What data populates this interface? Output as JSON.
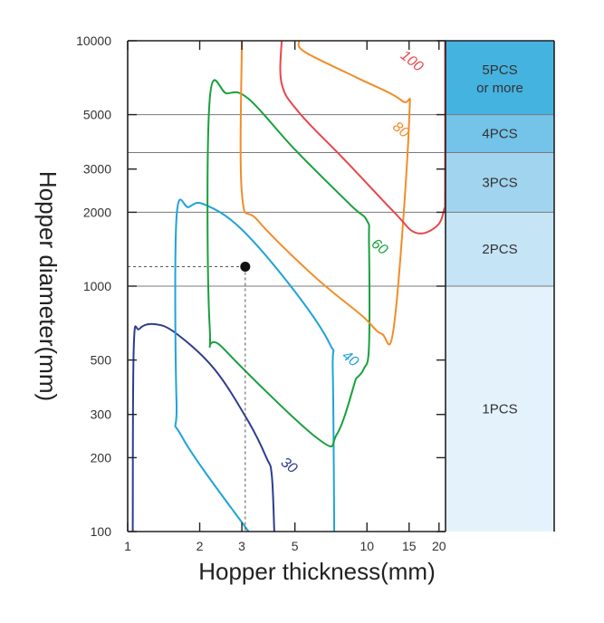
{
  "chart_data": {
    "type": "line",
    "xlabel": "Hopper thickness(mm)",
    "ylabel": "Hopper diameter(mm)",
    "x_scale": "log",
    "y_scale": "log",
    "xlim": [
      1,
      25
    ],
    "ylim": [
      100,
      10000
    ],
    "x_ticks": [
      "1",
      "2",
      "3",
      "5",
      "10",
      "15",
      "20"
    ],
    "y_ticks": [
      "100",
      "200",
      "300",
      "500",
      "1000",
      "2000",
      "3000",
      "5000",
      "10000"
    ],
    "bands": [
      {
        "label": "5PCS",
        "label2": "or more",
        "from": 5000,
        "to": 10000,
        "color": "#45b3e0"
      },
      {
        "label": "4PCS",
        "from": 3500,
        "to": 5000,
        "color": "#74c3e8"
      },
      {
        "label": "3PCS",
        "from": 2000,
        "to": 3500,
        "color": "#a1d4ee"
      },
      {
        "label": "2PCS",
        "from": 1000,
        "to": 2000,
        "color": "#c5e4f5"
      },
      {
        "label": "1PCS",
        "from": 100,
        "to": 1000,
        "color": "#e4f2fb"
      }
    ],
    "series": [
      {
        "name": "30",
        "color": "#2e3c8f",
        "points": [
          [
            1.05,
            100
          ],
          [
            1.06,
            560
          ],
          [
            1.12,
            670
          ],
          [
            1.3,
            700
          ],
          [
            1.6,
            640
          ],
          [
            2.3,
            460
          ],
          [
            3.2,
            280
          ],
          [
            3.8,
            200
          ],
          [
            4.0,
            170
          ],
          [
            4.1,
            100
          ]
        ],
        "label_at": [
          4.6,
          180
        ]
      },
      {
        "name": "40",
        "color": "#1fa3d9",
        "points": [
          [
            3.2,
            100
          ],
          [
            1.7,
            240
          ],
          [
            1.6,
            340
          ],
          [
            1.6,
            1900
          ],
          [
            1.8,
            2100
          ],
          [
            2.1,
            2150
          ],
          [
            3.0,
            1700
          ],
          [
            5.0,
            950
          ],
          [
            7.0,
            580
          ],
          [
            7.2,
            450
          ],
          [
            7.3,
            100
          ]
        ],
        "label_at": [
          8.3,
          490
        ]
      },
      {
        "name": "60",
        "color": "#18a03c",
        "points": [
          [
            9.0,
            420
          ],
          [
            7.5,
            250
          ],
          [
            6.2,
            240
          ],
          [
            2.5,
            560
          ],
          [
            2.2,
            690
          ],
          [
            2.2,
            5700
          ],
          [
            2.6,
            6100
          ],
          [
            3.2,
            5800
          ],
          [
            5.0,
            3600
          ],
          [
            8.5,
            2150
          ],
          [
            10.0,
            1850
          ],
          [
            10.2,
            1500
          ],
          [
            10.2,
            570
          ],
          [
            9.7,
            460
          ],
          [
            9.0,
            420
          ]
        ],
        "label_at": [
          11.0,
          1400
        ]
      },
      {
        "name": "80",
        "color": "#f28c28",
        "points": [
          [
            3.0,
            10000
          ],
          [
            3.0,
            2400
          ],
          [
            3.5,
            1850
          ],
          [
            6.0,
            1100
          ],
          [
            9.5,
            760
          ],
          [
            11.5,
            640
          ],
          [
            13.0,
            700
          ],
          [
            15.0,
            4700
          ],
          [
            14.0,
            5700
          ],
          [
            9.0,
            7100
          ],
          [
            5.5,
            9000
          ],
          [
            5.2,
            10000
          ]
        ],
        "label_at": [
          13.5,
          4200
        ]
      },
      {
        "name": "100",
        "color": "#e8464b",
        "points": [
          [
            4.4,
            10000
          ],
          [
            4.4,
            6700
          ],
          [
            5.2,
            5100
          ],
          [
            8.0,
            3300
          ],
          [
            13.0,
            2000
          ],
          [
            16.0,
            1650
          ],
          [
            19.5,
            1750
          ],
          [
            21.0,
            2050
          ],
          [
            21.2,
            2500
          ],
          [
            21.2,
            10000
          ]
        ],
        "label_at": [
          15.0,
          8000
        ]
      }
    ],
    "point": {
      "x": 3.1,
      "y": 1200
    },
    "xlim_right": 21.3
  }
}
